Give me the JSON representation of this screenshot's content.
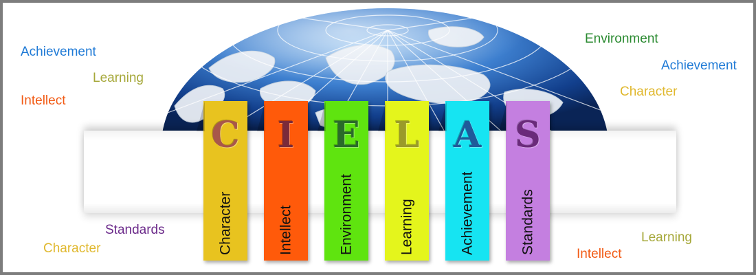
{
  "colors": {
    "character": "#e8c31f",
    "intellect": "#ff5a0a",
    "environment": "#5fe40f",
    "learning": "#e4f51c",
    "achievement": "#16e4f2",
    "standards": "#c47fe0",
    "word_achievement": "#1f7ad6",
    "word_learning": "#a6a83a",
    "word_intellect": "#f25a14",
    "word_environment": "#2a8a30",
    "word_character": "#e0b82e",
    "word_standards": "#6b2a8a"
  },
  "floating_words": {
    "left_achievement": "Achievement",
    "left_learning": "Learning",
    "left_intellect": "Intellect",
    "right_environment": "Environment",
    "right_achievement": "Achievement",
    "right_character": "Character",
    "left_standards": "Standards",
    "left_character": "Character",
    "right_learning": "Learning",
    "right_intellect": "Intellect"
  },
  "tabs": [
    {
      "letter": "C",
      "label": "Character"
    },
    {
      "letter": "I",
      "label": "Intellect"
    },
    {
      "letter": "E",
      "label": "Environment"
    },
    {
      "letter": "L",
      "label": "Learning"
    },
    {
      "letter": "A",
      "label": "Achievement"
    },
    {
      "letter": "S",
      "label": "Standards"
    }
  ],
  "globe": {
    "icon": "globe-icon"
  }
}
